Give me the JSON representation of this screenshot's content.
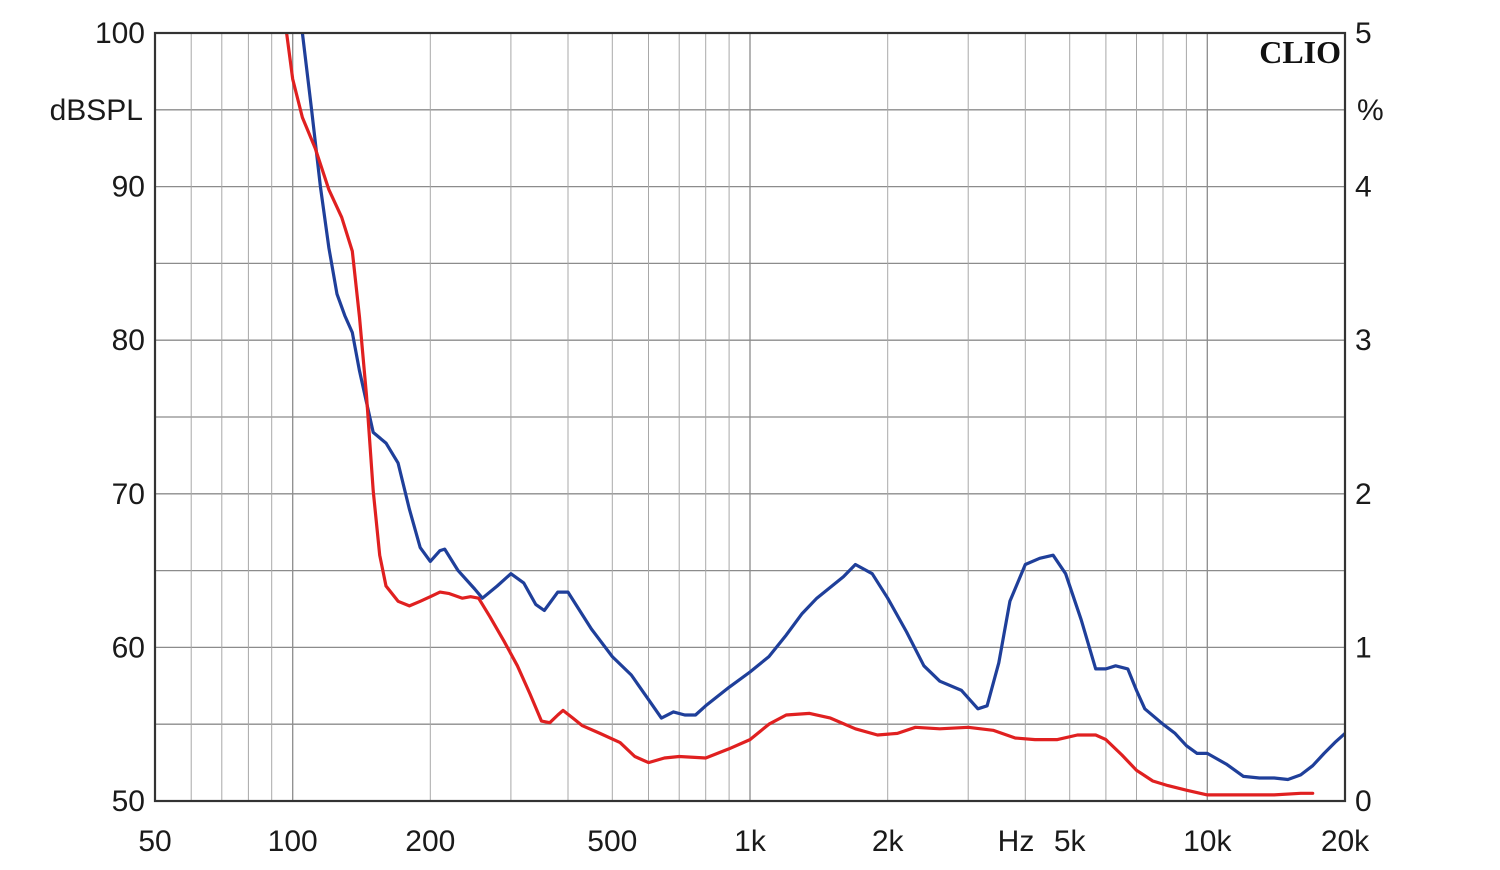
{
  "chart_data": {
    "type": "line",
    "brand": "CLIO",
    "x_scale": "log",
    "xlim": [
      50,
      20000
    ],
    "y_left": {
      "unit_label": "dBSPL",
      "lim": [
        50,
        100
      ],
      "ticks": [
        50,
        60,
        70,
        80,
        90,
        100
      ],
      "tick_labels": [
        "50",
        "60",
        "70",
        "80",
        "90",
        "100"
      ]
    },
    "y_right": {
      "unit_label": "%",
      "lim": [
        0,
        5
      ],
      "ticks": [
        0,
        1,
        2,
        3,
        4,
        5
      ],
      "tick_labels": [
        "0",
        "1",
        "2",
        "3",
        "4",
        "5"
      ]
    },
    "x_ticks": [
      {
        "value": 50,
        "label": "50"
      },
      {
        "value": 100,
        "label": "100"
      },
      {
        "value": 200,
        "label": "200"
      },
      {
        "value": 500,
        "label": "500"
      },
      {
        "value": 1000,
        "label": "1k"
      },
      {
        "value": 2000,
        "label": "2k"
      },
      {
        "value": 5000,
        "label": "5k"
      },
      {
        "value": 10000,
        "label": "10k"
      },
      {
        "value": 20000,
        "label": "20k"
      }
    ],
    "x_unit_label": "Hz",
    "grid": true,
    "series": [
      {
        "color": "#1f3f9a",
        "points": [
          [
            105,
            100
          ],
          [
            110,
            95
          ],
          [
            115,
            90
          ],
          [
            120,
            86
          ],
          [
            125,
            83
          ],
          [
            130,
            81.6
          ],
          [
            135,
            80.5
          ],
          [
            140,
            78
          ],
          [
            150,
            74
          ],
          [
            160,
            73.3
          ],
          [
            170,
            72
          ],
          [
            180,
            69
          ],
          [
            190,
            66.5
          ],
          [
            200,
            65.6
          ],
          [
            210,
            66.3
          ],
          [
            215,
            66.4
          ],
          [
            230,
            65
          ],
          [
            250,
            63.8
          ],
          [
            260,
            63.2
          ],
          [
            280,
            64
          ],
          [
            300,
            64.8
          ],
          [
            320,
            64.2
          ],
          [
            340,
            62.8
          ],
          [
            355,
            62.4
          ],
          [
            380,
            63.6
          ],
          [
            400,
            63.6
          ],
          [
            450,
            61.2
          ],
          [
            500,
            59.4
          ],
          [
            550,
            58.2
          ],
          [
            600,
            56.6
          ],
          [
            640,
            55.4
          ],
          [
            680,
            55.8
          ],
          [
            720,
            55.6
          ],
          [
            760,
            55.6
          ],
          [
            800,
            56.2
          ],
          [
            900,
            57.4
          ],
          [
            1000,
            58.4
          ],
          [
            1100,
            59.4
          ],
          [
            1200,
            60.8
          ],
          [
            1300,
            62.2
          ],
          [
            1400,
            63.2
          ],
          [
            1600,
            64.6
          ],
          [
            1700,
            65.4
          ],
          [
            1850,
            64.8
          ],
          [
            2000,
            63.2
          ],
          [
            2200,
            61
          ],
          [
            2400,
            58.8
          ],
          [
            2600,
            57.8
          ],
          [
            2900,
            57.2
          ],
          [
            3150,
            56
          ],
          [
            3300,
            56.2
          ],
          [
            3500,
            59
          ],
          [
            3700,
            63
          ],
          [
            4000,
            65.4
          ],
          [
            4300,
            65.8
          ],
          [
            4600,
            66
          ],
          [
            4900,
            64.8
          ],
          [
            5300,
            61.8
          ],
          [
            5700,
            58.6
          ],
          [
            6000,
            58.6
          ],
          [
            6300,
            58.8
          ],
          [
            6700,
            58.6
          ],
          [
            7000,
            57.2
          ],
          [
            7300,
            56
          ],
          [
            8000,
            55
          ],
          [
            8500,
            54.4
          ],
          [
            9000,
            53.6
          ],
          [
            9500,
            53.1
          ],
          [
            10000,
            53.1
          ],
          [
            11000,
            52.4
          ],
          [
            12000,
            51.6
          ],
          [
            13000,
            51.5
          ],
          [
            14000,
            51.5
          ],
          [
            15000,
            51.4
          ],
          [
            16000,
            51.7
          ],
          [
            17000,
            52.3
          ],
          [
            18000,
            53.1
          ],
          [
            19000,
            53.8
          ],
          [
            20000,
            54.4
          ]
        ]
      },
      {
        "color": "#e02020",
        "points": [
          [
            97,
            100
          ],
          [
            100,
            97
          ],
          [
            105,
            94.5
          ],
          [
            112,
            92.5
          ],
          [
            120,
            89.8
          ],
          [
            128,
            88
          ],
          [
            135,
            85.8
          ],
          [
            140,
            81.5
          ],
          [
            145,
            76.4
          ],
          [
            150,
            70.2
          ],
          [
            155,
            66
          ],
          [
            160,
            64
          ],
          [
            170,
            63
          ],
          [
            180,
            62.7
          ],
          [
            190,
            63
          ],
          [
            200,
            63.3
          ],
          [
            210,
            63.6
          ],
          [
            220,
            63.5
          ],
          [
            235,
            63.2
          ],
          [
            245,
            63.3
          ],
          [
            255,
            63.2
          ],
          [
            270,
            62
          ],
          [
            290,
            60.4
          ],
          [
            310,
            58.8
          ],
          [
            330,
            57
          ],
          [
            350,
            55.2
          ],
          [
            365,
            55.1
          ],
          [
            380,
            55.6
          ],
          [
            390,
            55.9
          ],
          [
            410,
            55.4
          ],
          [
            430,
            54.9
          ],
          [
            470,
            54.4
          ],
          [
            520,
            53.8
          ],
          [
            560,
            52.9
          ],
          [
            600,
            52.5
          ],
          [
            650,
            52.8
          ],
          [
            700,
            52.9
          ],
          [
            800,
            52.8
          ],
          [
            900,
            53.4
          ],
          [
            1000,
            54
          ],
          [
            1100,
            55
          ],
          [
            1200,
            55.6
          ],
          [
            1350,
            55.7
          ],
          [
            1500,
            55.4
          ],
          [
            1700,
            54.7
          ],
          [
            1900,
            54.3
          ],
          [
            2100,
            54.4
          ],
          [
            2300,
            54.8
          ],
          [
            2600,
            54.7
          ],
          [
            3000,
            54.8
          ],
          [
            3400,
            54.6
          ],
          [
            3800,
            54.1
          ],
          [
            4200,
            54
          ],
          [
            4700,
            54
          ],
          [
            5200,
            54.3
          ],
          [
            5700,
            54.3
          ],
          [
            6000,
            54
          ],
          [
            6500,
            53
          ],
          [
            7000,
            52
          ],
          [
            7600,
            51.3
          ],
          [
            8200,
            51
          ],
          [
            9000,
            50.7
          ],
          [
            10000,
            50.4
          ],
          [
            12000,
            50.4
          ],
          [
            14000,
            50.4
          ],
          [
            16000,
            50.5
          ],
          [
            17000,
            50.5
          ]
        ]
      }
    ]
  }
}
